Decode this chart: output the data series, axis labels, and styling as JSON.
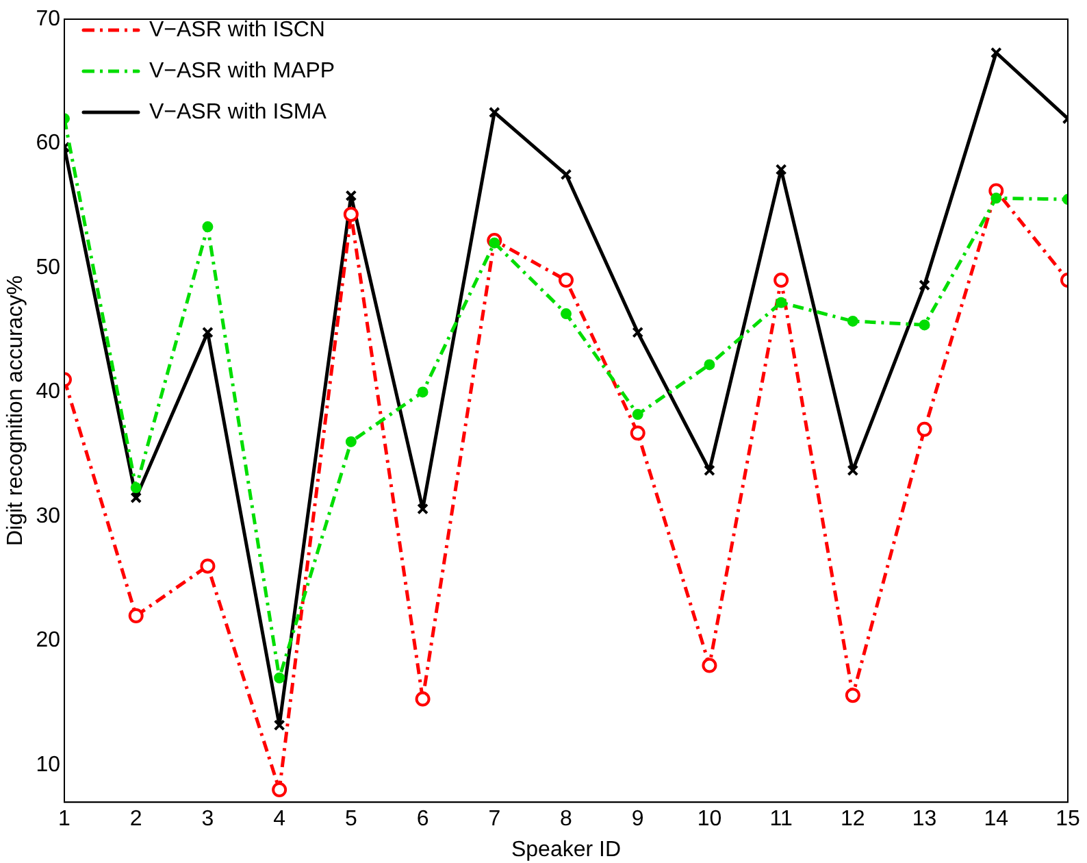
{
  "chart_data": {
    "type": "line",
    "xlabel": "Speaker ID",
    "ylabel": "Digit recognition accuracy%",
    "x": [
      1,
      2,
      3,
      4,
      5,
      6,
      7,
      8,
      9,
      10,
      11,
      12,
      13,
      14,
      15
    ],
    "xlim": [
      1,
      15
    ],
    "xticks": [
      1,
      2,
      3,
      4,
      5,
      6,
      7,
      8,
      9,
      10,
      11,
      12,
      13,
      14,
      15
    ],
    "ylim": [
      7,
      70
    ],
    "yticks": [
      10,
      20,
      30,
      40,
      50,
      60,
      70
    ],
    "grid": false,
    "legend": "top left",
    "series": [
      {
        "name": "V−ASR with ISCN",
        "color": "#ff0000",
        "marker": "circle",
        "line_style": "dashed",
        "values": [
          41,
          22,
          26,
          8,
          54.3,
          15.3,
          52.2,
          49,
          36.7,
          18,
          49,
          15.6,
          37,
          56.2,
          49
        ]
      },
      {
        "name": "V−ASR with MAPP",
        "color": "#00dd00",
        "marker": "circle",
        "line_style": "dashed",
        "values": [
          62,
          32.3,
          53.3,
          17,
          36,
          40,
          52,
          46.3,
          38.2,
          42.2,
          47.2,
          45.7,
          45.4,
          55.6,
          55.5
        ]
      },
      {
        "name": "V−ASR with ISMA",
        "color": "#000000",
        "marker": "cross",
        "line_style": "solid",
        "values": [
          59.7,
          31.5,
          44.8,
          13.2,
          55.8,
          30.6,
          62.5,
          57.5,
          44.8,
          33.7,
          57.9,
          33.7,
          48.6,
          67.3,
          62
        ]
      }
    ]
  }
}
